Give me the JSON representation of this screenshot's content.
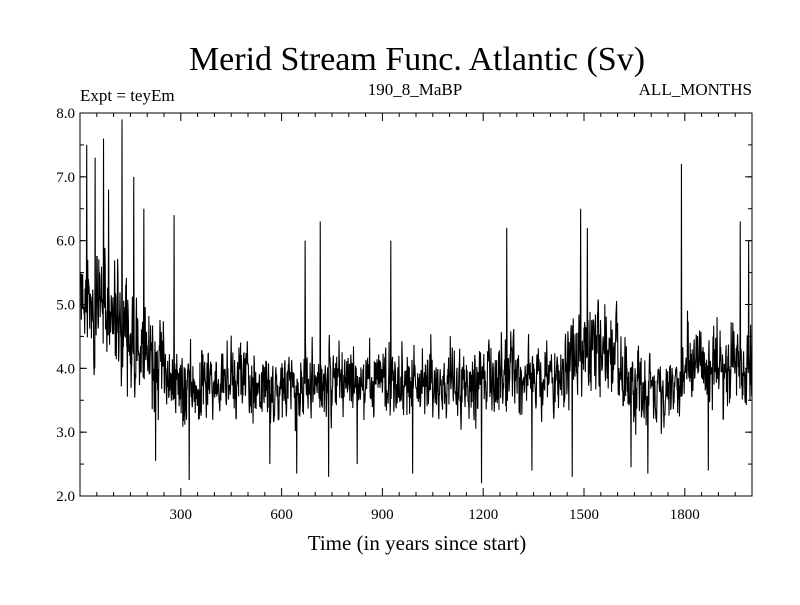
{
  "chart_data": {
    "type": "line",
    "title": "Merid Stream Func. Atlantic (Sv)",
    "subtitle_left": "Expt = teyEm",
    "subtitle_center": "190_8_MaBP",
    "subtitle_right": "ALL_MONTHS",
    "xlabel": "Time (in years since start)",
    "ylabel": "",
    "xlim": [
      0,
      2000
    ],
    "ylim": [
      2.0,
      8.0
    ],
    "x_ticks": [
      300,
      600,
      900,
      1200,
      1500,
      1800
    ],
    "x_tick_labels": [
      "300",
      "600",
      "900",
      "1200",
      "1500",
      "1800"
    ],
    "y_ticks": [
      2.0,
      3.0,
      4.0,
      5.0,
      6.0,
      7.0,
      8.0
    ],
    "y_tick_labels": [
      "2.0",
      "3.0",
      "4.0",
      "5.0",
      "6.0",
      "7.0",
      "8.0"
    ],
    "grid": false,
    "series": [
      {
        "name": "Merid Stream Func. Atlantic",
        "x_start": 1,
        "x_step": 1,
        "count": 2000,
        "segments": [
          {
            "x0": 0,
            "x1": 250,
            "mean0": 5.2,
            "mean1": 4.0,
            "sd": 0.65
          },
          {
            "x0": 250,
            "x1": 1450,
            "mean0": 3.75,
            "mean1": 3.8,
            "sd": 0.45
          },
          {
            "x0": 1450,
            "x1": 1600,
            "mean0": 4.3,
            "mean1": 4.2,
            "sd": 0.55
          },
          {
            "x0": 1600,
            "x1": 1800,
            "mean0": 3.7,
            "mean1": 3.7,
            "sd": 0.45
          },
          {
            "x0": 1800,
            "x1": 2000,
            "mean0": 4.1,
            "mean1": 4.1,
            "sd": 0.5
          }
        ],
        "peaks": [
          {
            "x": 20,
            "y": 7.5
          },
          {
            "x": 45,
            "y": 7.3
          },
          {
            "x": 70,
            "y": 7.6
          },
          {
            "x": 85,
            "y": 6.8
          },
          {
            "x": 125,
            "y": 7.9
          },
          {
            "x": 160,
            "y": 7.0
          },
          {
            "x": 190,
            "y": 6.5
          },
          {
            "x": 280,
            "y": 6.4
          },
          {
            "x": 670,
            "y": 6.0
          },
          {
            "x": 715,
            "y": 6.3
          },
          {
            "x": 925,
            "y": 6.0
          },
          {
            "x": 1270,
            "y": 6.2
          },
          {
            "x": 1490,
            "y": 6.5
          },
          {
            "x": 1510,
            "y": 6.2
          },
          {
            "x": 1790,
            "y": 7.2
          },
          {
            "x": 1965,
            "y": 6.3
          },
          {
            "x": 1990,
            "y": 6.0
          }
        ],
        "troughs": [
          {
            "x": 225,
            "y": 2.55
          },
          {
            "x": 325,
            "y": 2.25
          },
          {
            "x": 565,
            "y": 2.5
          },
          {
            "x": 645,
            "y": 2.35
          },
          {
            "x": 740,
            "y": 2.3
          },
          {
            "x": 825,
            "y": 2.5
          },
          {
            "x": 990,
            "y": 2.35
          },
          {
            "x": 1195,
            "y": 2.2
          },
          {
            "x": 1345,
            "y": 2.4
          },
          {
            "x": 1465,
            "y": 2.3
          },
          {
            "x": 1640,
            "y": 2.45
          },
          {
            "x": 1690,
            "y": 2.35
          },
          {
            "x": 1870,
            "y": 2.4
          }
        ]
      }
    ]
  }
}
